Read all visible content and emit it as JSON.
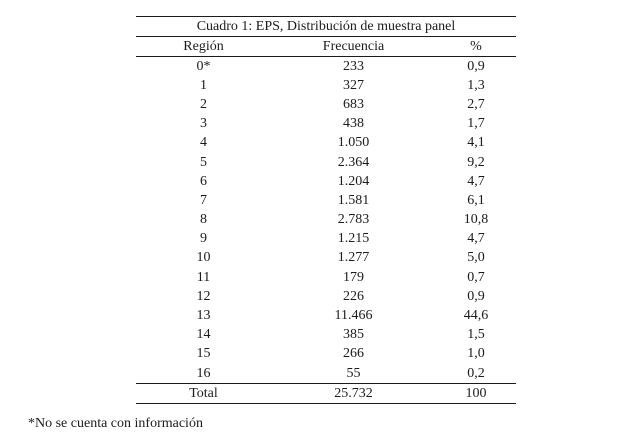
{
  "table": {
    "title": "Cuadro 1: EPS, Distribución de muestra panel",
    "columns": [
      "Región",
      "Frecuencia",
      "%"
    ],
    "rows": [
      [
        "0*",
        "233",
        "0,9"
      ],
      [
        "1",
        "327",
        "1,3"
      ],
      [
        "2",
        "683",
        "2,7"
      ],
      [
        "3",
        "438",
        "1,7"
      ],
      [
        "4",
        "1.050",
        "4,1"
      ],
      [
        "5",
        "2.364",
        "9,2"
      ],
      [
        "6",
        "1.204",
        "4,7"
      ],
      [
        "7",
        "1.581",
        "6,1"
      ],
      [
        "8",
        "2.783",
        "10,8"
      ],
      [
        "9",
        "1.215",
        "4,7"
      ],
      [
        "10",
        "1.277",
        "5,0"
      ],
      [
        "11",
        "179",
        "0,7"
      ],
      [
        "12",
        "226",
        "0,9"
      ],
      [
        "13",
        "11.466",
        "44,6"
      ],
      [
        "14",
        "385",
        "1,5"
      ],
      [
        "15",
        "266",
        "1,0"
      ],
      [
        "16",
        "55",
        "0,2"
      ]
    ],
    "total_row": [
      "Total",
      "25.732",
      "100"
    ],
    "footnote": "*No se cuenta con información"
  },
  "colors": {
    "text": "#1b1b1b",
    "rule": "#1b1b1b",
    "background": "#ffffff"
  }
}
